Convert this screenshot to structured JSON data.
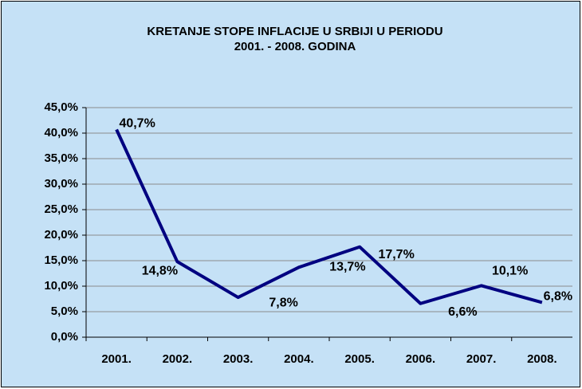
{
  "chart_data": {
    "type": "line",
    "title": [
      "KRETANJE STOPE INFLACIJE  U SRBIJI U PERIODU",
      "2001. - 2008. GODINA"
    ],
    "categories": [
      "2001.",
      "2002.",
      "2003.",
      "2004.",
      "2005.",
      "2006.",
      "2007.",
      "2008."
    ],
    "values": [
      40.7,
      14.8,
      7.8,
      13.7,
      17.7,
      6.6,
      10.1,
      6.8
    ],
    "value_labels": [
      "40,7%",
      "14,8%",
      "7,8%",
      "13,7%",
      "17,7%",
      "6,6%",
      "10,1%",
      "6,8%"
    ],
    "color": "#000080",
    "ylim": [
      0,
      45
    ],
    "yticks": [
      {
        "value": 0,
        "label": "0,0%"
      },
      {
        "value": 5,
        "label": "5,0%"
      },
      {
        "value": 10,
        "label": "10,0%"
      },
      {
        "value": 15,
        "label": "15,0%"
      },
      {
        "value": 20,
        "label": "20,0%"
      },
      {
        "value": 25,
        "label": "25,0%"
      },
      {
        "value": 30,
        "label": "30,0%"
      },
      {
        "value": 35,
        "label": "35,0%"
      },
      {
        "value": 40,
        "label": "40,0%"
      },
      {
        "value": 45,
        "label": "45,0%"
      }
    ],
    "grid": true
  }
}
